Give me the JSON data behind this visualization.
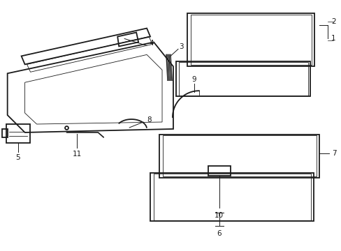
{
  "background_color": "#ffffff",
  "line_color": "#1a1a1a",
  "lw_thick": 1.3,
  "lw_thin": 0.6,
  "lw_callout": 0.7,
  "font_size": 7.5
}
